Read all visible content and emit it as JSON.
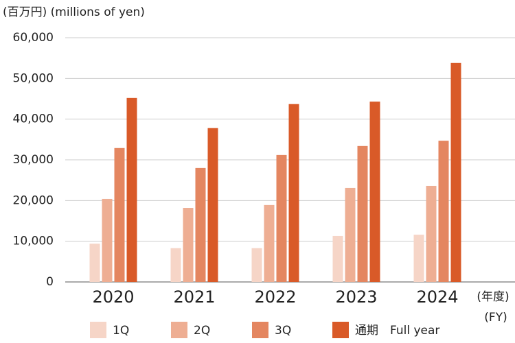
{
  "chart_data": {
    "type": "bar",
    "unit_label": "(百万円) (millions of yen)",
    "x_unit_label": [
      "(年度)",
      "(FY)"
    ],
    "categories": [
      "2020",
      "2021",
      "2022",
      "2023",
      "2024"
    ],
    "series": [
      {
        "name": "1Q",
        "color": "#f6d5c7",
        "values": [
          9400,
          8300,
          8300,
          11300,
          11600
        ]
      },
      {
        "name": "2Q",
        "color": "#eeae93",
        "values": [
          20400,
          18200,
          18900,
          23100,
          23600
        ]
      },
      {
        "name": "3Q",
        "color": "#e48660",
        "values": [
          32900,
          28000,
          31200,
          33400,
          34700
        ]
      },
      {
        "name": "通期　Full year",
        "color": "#d95a28",
        "values": [
          45200,
          37800,
          43700,
          44300,
          53800
        ]
      }
    ],
    "ylim": [
      0,
      60000
    ],
    "yticks": [
      0,
      {
        "value": 10000,
        "label": "10,000"
      },
      {
        "value": 20000,
        "label": "20,000"
      },
      {
        "value": 30000,
        "label": "30,000"
      },
      {
        "value": 40000,
        "label": "40,000"
      },
      {
        "value": 50000,
        "label": "50,000"
      },
      {
        "value": 60000,
        "label": "60,000"
      }
    ],
    "grid": true
  }
}
